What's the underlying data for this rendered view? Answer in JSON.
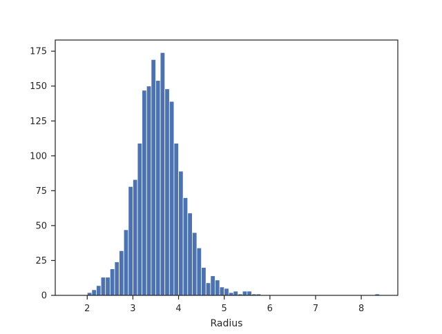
{
  "chart_data": {
    "type": "bar",
    "xlabel": "Radius",
    "ylabel": "",
    "title": "",
    "xlim": [
      1.3,
      8.8
    ],
    "ylim": [
      0,
      183
    ],
    "x_ticks": [
      2,
      3,
      4,
      5,
      6,
      7,
      8
    ],
    "y_ticks": [
      0,
      25,
      50,
      75,
      100,
      125,
      150,
      175
    ],
    "grid": false,
    "bar_color": "#4c72b0",
    "bin_width": 0.1,
    "bins": [
      {
        "x": 2.05,
        "count": 2
      },
      {
        "x": 2.15,
        "count": 4
      },
      {
        "x": 2.25,
        "count": 7
      },
      {
        "x": 2.35,
        "count": 13
      },
      {
        "x": 2.45,
        "count": 13
      },
      {
        "x": 2.55,
        "count": 19
      },
      {
        "x": 2.65,
        "count": 24
      },
      {
        "x": 2.75,
        "count": 32
      },
      {
        "x": 2.85,
        "count": 47
      },
      {
        "x": 2.95,
        "count": 78
      },
      {
        "x": 3.05,
        "count": 83
      },
      {
        "x": 3.15,
        "count": 109
      },
      {
        "x": 3.25,
        "count": 147
      },
      {
        "x": 3.35,
        "count": 150
      },
      {
        "x": 3.45,
        "count": 169
      },
      {
        "x": 3.55,
        "count": 154
      },
      {
        "x": 3.65,
        "count": 174
      },
      {
        "x": 3.75,
        "count": 148
      },
      {
        "x": 3.85,
        "count": 139
      },
      {
        "x": 3.95,
        "count": 109
      },
      {
        "x": 4.05,
        "count": 89
      },
      {
        "x": 4.15,
        "count": 70
      },
      {
        "x": 4.25,
        "count": 59
      },
      {
        "x": 4.35,
        "count": 45
      },
      {
        "x": 4.45,
        "count": 34
      },
      {
        "x": 4.55,
        "count": 20
      },
      {
        "x": 4.65,
        "count": 9
      },
      {
        "x": 4.75,
        "count": 14
      },
      {
        "x": 4.85,
        "count": 11
      },
      {
        "x": 4.95,
        "count": 6
      },
      {
        "x": 5.05,
        "count": 5
      },
      {
        "x": 5.15,
        "count": 2
      },
      {
        "x": 5.25,
        "count": 3
      },
      {
        "x": 5.35,
        "count": 1
      },
      {
        "x": 5.45,
        "count": 3
      },
      {
        "x": 5.55,
        "count": 3
      },
      {
        "x": 5.65,
        "count": 1
      },
      {
        "x": 5.75,
        "count": 1
      },
      {
        "x": 8.35,
        "count": 1
      }
    ]
  }
}
